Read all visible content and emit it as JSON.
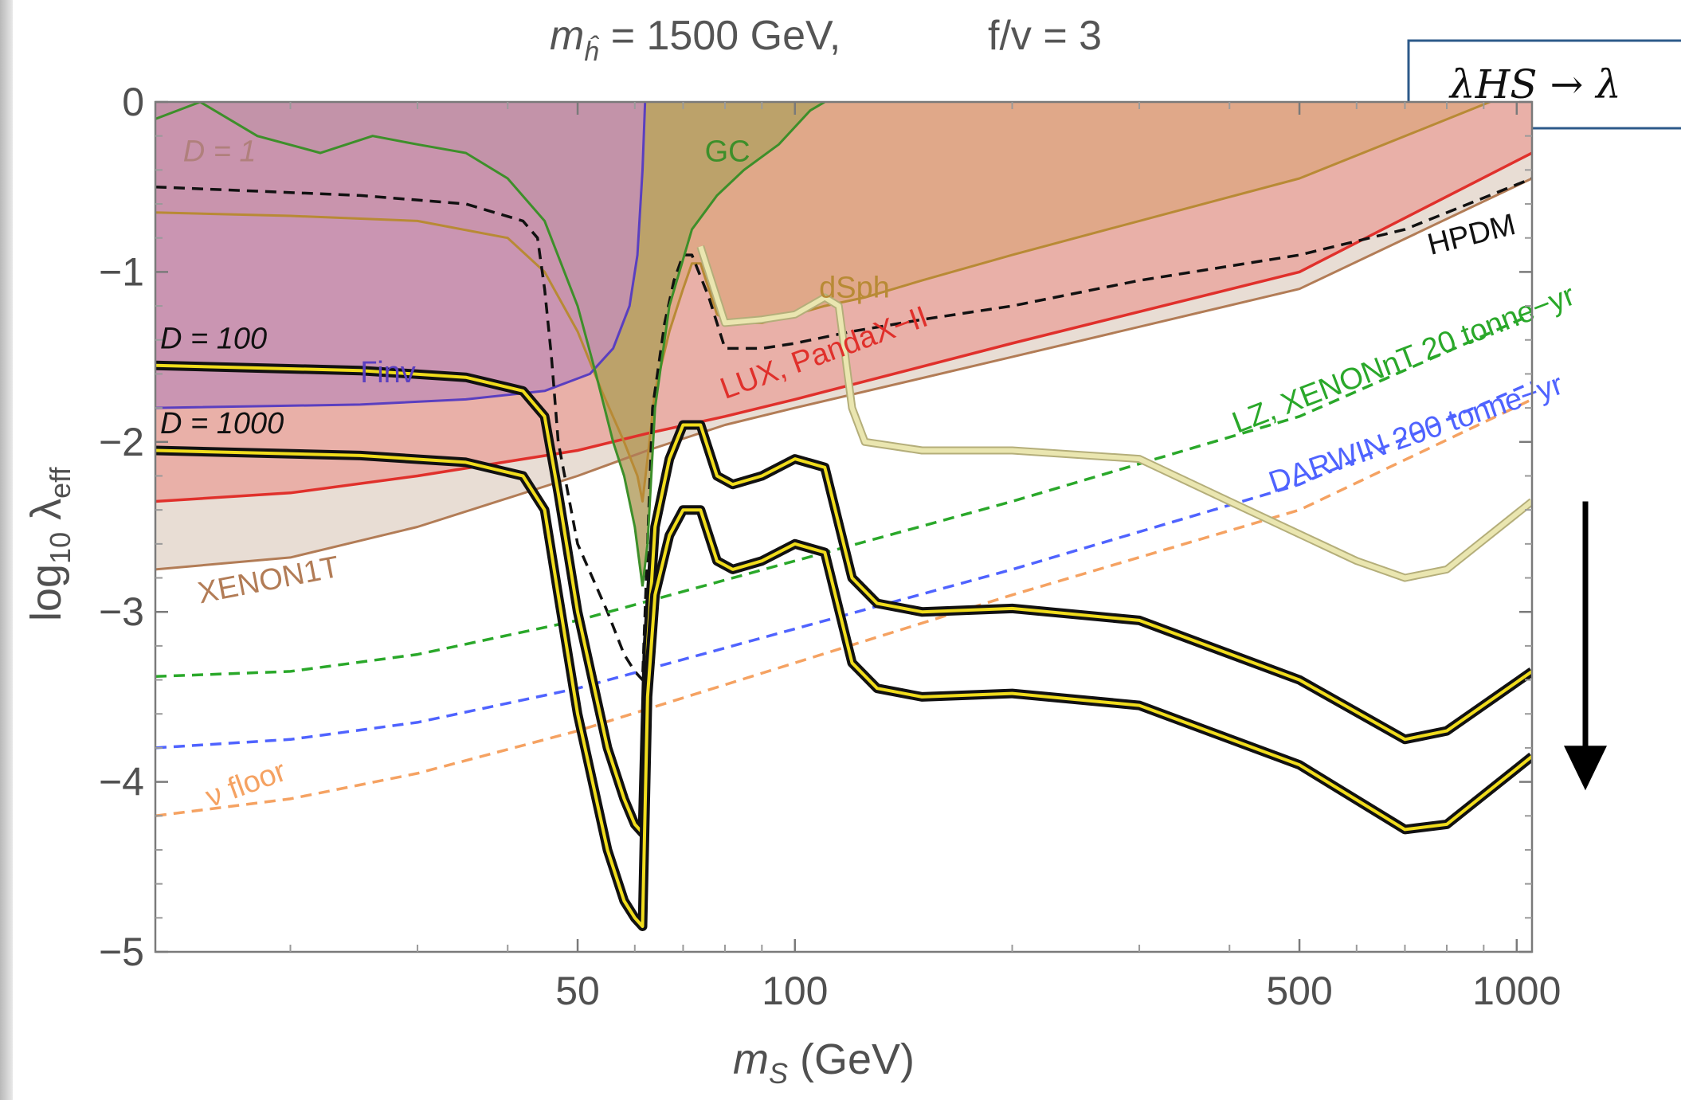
{
  "chart_data": {
    "type": "line",
    "title": {
      "mh_symbol": "m",
      "mh_sub": "ĥ",
      "mh_value": " = 1500 GeV,",
      "fv": "f/v = 3"
    },
    "xlabel": {
      "base": "m",
      "sub": "S",
      "unit": " (GeV)"
    },
    "ylabel": {
      "base": "log",
      "sub10": "10",
      "lambda": " λ",
      "sub": "eff"
    },
    "x_scale": "log",
    "xlim": [
      13,
      1050
    ],
    "ylim": [
      -5,
      0
    ],
    "xticks": [
      50,
      100,
      500,
      1000
    ],
    "xtick_labels": [
      "50",
      "100",
      "500",
      "1000"
    ],
    "yticks": [
      0,
      -1,
      -2,
      -3,
      -4,
      -5
    ],
    "ytick_labels": [
      "0",
      "−1",
      "−2",
      "−3",
      "−4",
      "−5"
    ],
    "annotation_box": "λHS → λ",
    "arrow": {
      "direction": "down",
      "from_y": -2.35,
      "to_y": -4.05,
      "at_x": 870
    },
    "regions": [
      {
        "name": "GC",
        "color": "#b5a165",
        "edge": "#3d8f2a",
        "points": [
          [
            13,
            -0.1
          ],
          [
            15,
            0
          ],
          [
            18,
            -0.2
          ],
          [
            22,
            -0.3
          ],
          [
            26,
            -0.2
          ],
          [
            30,
            -0.25
          ],
          [
            35,
            -0.3
          ],
          [
            40,
            -0.45
          ],
          [
            45,
            -0.7
          ],
          [
            50,
            -1.2
          ],
          [
            53,
            -1.6
          ],
          [
            56,
            -2.0
          ],
          [
            58,
            -2.2
          ],
          [
            60,
            -2.5
          ],
          [
            61.5,
            -2.85
          ],
          [
            62.5,
            -2.6
          ],
          [
            64,
            -1.8
          ],
          [
            67,
            -1.2
          ],
          [
            72,
            -0.75
          ],
          [
            78,
            -0.55
          ],
          [
            85,
            -0.4
          ],
          [
            95,
            -0.25
          ],
          [
            105,
            -0.05
          ],
          [
            110,
            0
          ]
        ]
      }
    ],
    "series": [
      {
        "label": "XENON1T",
        "style": "solid",
        "color": "#b27c56",
        "width": 3,
        "fill": "#e8ddd4",
        "points": [
          [
            13,
            -2.75
          ],
          [
            20,
            -2.68
          ],
          [
            30,
            -2.5
          ],
          [
            50,
            -2.2
          ],
          [
            62.5,
            -2.05
          ],
          [
            80,
            -1.9
          ],
          [
            100,
            -1.8
          ],
          [
            200,
            -1.5
          ],
          [
            500,
            -1.1
          ],
          [
            1050,
            -0.45
          ]
        ]
      },
      {
        "label": "LUX, PandaX-II",
        "style": "solid",
        "color": "#e0302b",
        "width": 3.5,
        "fill": "#e9b0a8",
        "points": [
          [
            13,
            -2.35
          ],
          [
            20,
            -2.3
          ],
          [
            30,
            -2.2
          ],
          [
            50,
            -2.05
          ],
          [
            62.5,
            -1.95
          ],
          [
            80,
            -1.85
          ],
          [
            100,
            -1.75
          ],
          [
            200,
            -1.42
          ],
          [
            500,
            -1.0
          ],
          [
            1050,
            -0.3
          ]
        ]
      },
      {
        "label": "dSph",
        "style": "solid",
        "color": "#b88a35",
        "width": 3,
        "fill": "#e0a889",
        "points": [
          [
            13,
            -0.65
          ],
          [
            20,
            -0.67
          ],
          [
            30,
            -0.7
          ],
          [
            40,
            -0.8
          ],
          [
            45,
            -1.0
          ],
          [
            50,
            -1.35
          ],
          [
            54,
            -1.7
          ],
          [
            58,
            -2.0
          ],
          [
            60.5,
            -2.2
          ],
          [
            61.5,
            -2.35
          ],
          [
            62.5,
            -2.1
          ],
          [
            64,
            -1.7
          ],
          [
            67,
            -1.35
          ],
          [
            70,
            -1.1
          ],
          [
            72,
            -0.95
          ],
          [
            74,
            -0.95
          ],
          [
            78,
            -1.25
          ],
          [
            82,
            -1.3
          ],
          [
            90,
            -1.3
          ],
          [
            100,
            -1.25
          ],
          [
            110,
            -1.2
          ],
          [
            125,
            -1.15
          ],
          [
            150,
            -1.05
          ],
          [
            200,
            -0.9
          ],
          [
            300,
            -0.7
          ],
          [
            500,
            -0.45
          ],
          [
            750,
            -0.15
          ],
          [
            1050,
            0.1
          ]
        ]
      },
      {
        "label": "Γinv",
        "style": "solid",
        "color": "#5a3fc0",
        "width": 3,
        "fill": "#c490b4",
        "points": [
          [
            13,
            -1.8
          ],
          [
            25,
            -1.78
          ],
          [
            35,
            -1.75
          ],
          [
            45,
            -1.7
          ],
          [
            52,
            -1.6
          ],
          [
            56,
            -1.45
          ],
          [
            59,
            -1.2
          ],
          [
            60.5,
            -0.9
          ],
          [
            61.5,
            -0.4
          ],
          [
            62,
            0
          ]
        ]
      },
      {
        "label": "HPDM",
        "style": "dashed",
        "color": "#111111",
        "width": 3.5,
        "fill": "",
        "points": [
          [
            13,
            -0.5
          ],
          [
            25,
            -0.55
          ],
          [
            35,
            -0.6
          ],
          [
            42,
            -0.7
          ],
          [
            44,
            -0.8
          ],
          [
            45,
            -1.1
          ],
          [
            46,
            -1.5
          ],
          [
            47,
            -2.0
          ],
          [
            50,
            -2.6
          ],
          [
            55,
            -3.0
          ],
          [
            58,
            -3.25
          ],
          [
            60,
            -3.35
          ],
          [
            61.5,
            -3.4
          ],
          [
            62.5,
            -2.6
          ],
          [
            63.5,
            -1.8
          ],
          [
            66,
            -1.3
          ],
          [
            68,
            -1.05
          ],
          [
            70,
            -0.9
          ],
          [
            72,
            -0.9
          ],
          [
            76,
            -1.15
          ],
          [
            80,
            -1.45
          ],
          [
            90,
            -1.45
          ],
          [
            100,
            -1.42
          ],
          [
            120,
            -1.35
          ],
          [
            150,
            -1.28
          ],
          [
            200,
            -1.2
          ],
          [
            300,
            -1.05
          ],
          [
            500,
            -0.9
          ],
          [
            700,
            -0.75
          ],
          [
            1050,
            -0.45
          ]
        ]
      },
      {
        "label": "LZ, XENONnT 20 tonne−yr",
        "style": "dashed",
        "color": "#2aa82a",
        "width": 3.5,
        "fill": "",
        "points": [
          [
            13,
            -3.38
          ],
          [
            20,
            -3.35
          ],
          [
            30,
            -3.25
          ],
          [
            50,
            -3.05
          ],
          [
            100,
            -2.7
          ],
          [
            200,
            -2.35
          ],
          [
            500,
            -1.85
          ],
          [
            1050,
            -1.25
          ]
        ]
      },
      {
        "label": "DARWIN 200 tonne−yr",
        "style": "dashed",
        "color": "#4f63ff",
        "width": 3.5,
        "fill": "",
        "points": [
          [
            13,
            -3.8
          ],
          [
            20,
            -3.75
          ],
          [
            30,
            -3.65
          ],
          [
            50,
            -3.45
          ],
          [
            100,
            -3.1
          ],
          [
            200,
            -2.75
          ],
          [
            500,
            -2.25
          ],
          [
            1050,
            -1.65
          ]
        ]
      },
      {
        "label": "ν floor",
        "style": "dashed",
        "color": "#f5a262",
        "width": 3.5,
        "fill": "",
        "points": [
          [
            13,
            -4.2
          ],
          [
            20,
            -4.1
          ],
          [
            30,
            -3.95
          ],
          [
            50,
            -3.7
          ],
          [
            100,
            -3.3
          ],
          [
            200,
            -2.9
          ],
          [
            500,
            -2.4
          ],
          [
            1050,
            -1.75
          ]
        ]
      },
      {
        "label": "D = 1",
        "style": "band",
        "color": "#eae6b0",
        "width": 8,
        "fill": "",
        "points": [
          [
            74,
            -0.85
          ],
          [
            80,
            -1.3
          ],
          [
            90,
            -1.28
          ],
          [
            100,
            -1.25
          ],
          [
            110,
            -1.15
          ],
          [
            115,
            -1.2
          ],
          [
            120,
            -1.8
          ],
          [
            125,
            -2.0
          ],
          [
            150,
            -2.05
          ],
          [
            200,
            -2.05
          ],
          [
            300,
            -2.1
          ],
          [
            400,
            -2.35
          ],
          [
            600,
            -2.7
          ],
          [
            700,
            -2.8
          ],
          [
            800,
            -2.75
          ],
          [
            1050,
            -2.35
          ]
        ]
      },
      {
        "label": "D = 100",
        "style": "band",
        "color": "#f0dc1c",
        "width": 6,
        "fill": "",
        "points": [
          [
            13,
            -1.55
          ],
          [
            25,
            -1.58
          ],
          [
            35,
            -1.62
          ],
          [
            42,
            -1.7
          ],
          [
            45,
            -1.85
          ],
          [
            47,
            -2.3
          ],
          [
            50,
            -3.0
          ],
          [
            55,
            -3.8
          ],
          [
            58,
            -4.1
          ],
          [
            60,
            -4.25
          ],
          [
            61.5,
            -4.3
          ],
          [
            62.5,
            -3.2
          ],
          [
            64,
            -2.5
          ],
          [
            67,
            -2.1
          ],
          [
            70,
            -1.9
          ],
          [
            74,
            -1.9
          ],
          [
            78,
            -2.2
          ],
          [
            82,
            -2.25
          ],
          [
            90,
            -2.2
          ],
          [
            100,
            -2.1
          ],
          [
            110,
            -2.15
          ],
          [
            120,
            -2.8
          ],
          [
            130,
            -2.95
          ],
          [
            150,
            -3.0
          ],
          [
            200,
            -2.98
          ],
          [
            300,
            -3.05
          ],
          [
            500,
            -3.4
          ],
          [
            700,
            -3.75
          ],
          [
            800,
            -3.7
          ],
          [
            1050,
            -3.35
          ]
        ]
      },
      {
        "label": "D = 1000",
        "style": "band",
        "color": "#f0dc1c",
        "width": 6,
        "fill": "",
        "points": [
          [
            13,
            -2.05
          ],
          [
            25,
            -2.08
          ],
          [
            35,
            -2.12
          ],
          [
            42,
            -2.2
          ],
          [
            45,
            -2.4
          ],
          [
            47,
            -2.9
          ],
          [
            50,
            -3.6
          ],
          [
            55,
            -4.4
          ],
          [
            58,
            -4.7
          ],
          [
            60,
            -4.8
          ],
          [
            61.5,
            -4.85
          ],
          [
            62.5,
            -3.5
          ],
          [
            64,
            -2.9
          ],
          [
            67,
            -2.55
          ],
          [
            70,
            -2.4
          ],
          [
            74,
            -2.4
          ],
          [
            78,
            -2.7
          ],
          [
            82,
            -2.75
          ],
          [
            90,
            -2.7
          ],
          [
            100,
            -2.6
          ],
          [
            110,
            -2.65
          ],
          [
            120,
            -3.3
          ],
          [
            130,
            -3.45
          ],
          [
            150,
            -3.5
          ],
          [
            200,
            -3.48
          ],
          [
            300,
            -3.55
          ],
          [
            500,
            -3.9
          ],
          [
            700,
            -4.28
          ],
          [
            800,
            -4.25
          ],
          [
            1050,
            -3.85
          ]
        ]
      }
    ],
    "labels": [
      {
        "text": "D = 1",
        "color": "#b0807c",
        "x": 14.2,
        "y": -0.35,
        "angle": 0,
        "italic": true
      },
      {
        "text": "GC",
        "color": "#3d8f2a",
        "x": 75,
        "y": -0.35,
        "angle": 0,
        "italic": false
      },
      {
        "text": "HPDM",
        "color": "#111111",
        "x": 760,
        "y": -0.9,
        "angle": -14,
        "italic": false
      },
      {
        "text": "dSph",
        "color": "#b88a35",
        "x": 108,
        "y": -1.15,
        "angle": 0,
        "italic": false
      },
      {
        "text": "LUX, PandaX−II",
        "color": "#e0302b",
        "x": 80,
        "y": -1.75,
        "angle": -20,
        "italic": false
      },
      {
        "text": "D = 100",
        "color": "#111111",
        "x": 13.2,
        "y": -1.45,
        "angle": 0,
        "italic": true
      },
      {
        "text": "D = 1000",
        "color": "#111111",
        "x": 13.2,
        "y": -1.95,
        "angle": 0,
        "italic": true
      },
      {
        "text": "Γinv",
        "color": "#5a3fc0",
        "x": 25,
        "y": -1.65,
        "angle": 0,
        "italic": false
      },
      {
        "text": "LZ, XENONnT 20 tonne−yr",
        "color": "#2aa82a",
        "x": 410,
        "y": -1.95,
        "angle": -21,
        "italic": false
      },
      {
        "text": "DARWIN 200 tonne−yr",
        "color": "#4f63ff",
        "x": 460,
        "y": -2.3,
        "angle": -19,
        "italic": false
      },
      {
        "text": "XENON1T",
        "color": "#b27c56",
        "x": 15,
        "y": -2.95,
        "angle": -11,
        "italic": false
      },
      {
        "text": "ν floor",
        "color": "#f5a262",
        "x": 15.5,
        "y": -4.15,
        "angle": -20,
        "italic": false
      }
    ]
  }
}
